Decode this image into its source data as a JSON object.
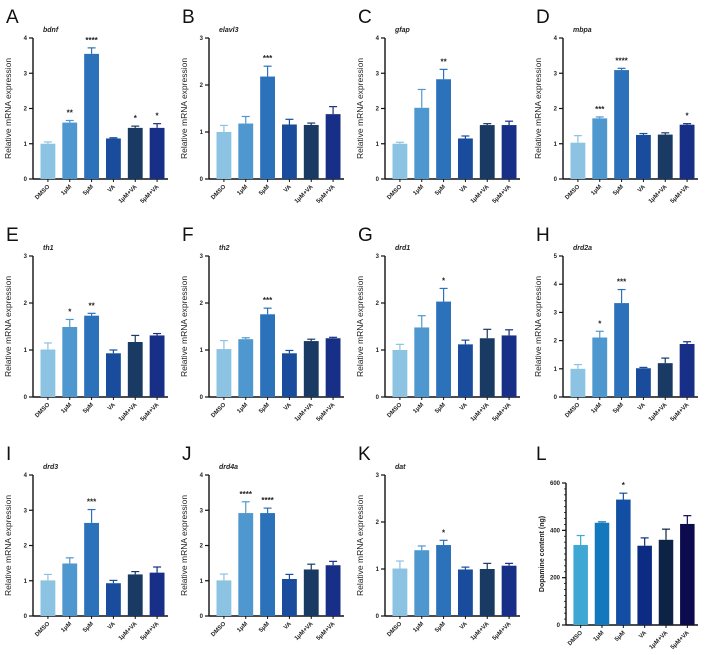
{
  "figure": {
    "categories": [
      "DMSO",
      "1μM",
      "5μM",
      "VA",
      "1μM+VA",
      "5μM+VA"
    ],
    "palette_rna": [
      "#8cc3e3",
      "#4f98cf",
      "#2c72bb",
      "#1a4c9e",
      "#183a63",
      "#172f87"
    ],
    "palette_dopamine": [
      "#3ea7d3",
      "#1478bd",
      "#124ea3",
      "#0c2c84",
      "#0c2346",
      "#0b0b4d"
    ]
  },
  "chart_data": [
    {
      "panel": "A",
      "type": "bar",
      "title": "bdnf",
      "ylabel": "Relative mRNA  expression",
      "ylim": [
        0,
        4
      ],
      "yticks": [
        0,
        1,
        2,
        3,
        4
      ],
      "categories": [
        "DMSO",
        "1μM",
        "5μM",
        "VA",
        "1μM+VA",
        "5μM+VA"
      ],
      "values": [
        1.0,
        1.6,
        3.55,
        1.15,
        1.45,
        1.45
      ],
      "errors": [
        0.05,
        0.06,
        0.17,
        0.02,
        0.05,
        0.12
      ],
      "significance": [
        "",
        "**",
        "****",
        "",
        "*",
        "*"
      ]
    },
    {
      "panel": "B",
      "type": "bar",
      "title": "elavl3",
      "ylabel": "Relative mRNA  expression",
      "ylim": [
        0,
        3
      ],
      "yticks": [
        0,
        1,
        2,
        3
      ],
      "categories": [
        "DMSO",
        "1μM",
        "5μM",
        "VA",
        "1μM+VA",
        "5μM+VA"
      ],
      "values": [
        1.0,
        1.18,
        2.18,
        1.16,
        1.15,
        1.38
      ],
      "errors": [
        0.14,
        0.15,
        0.22,
        0.11,
        0.04,
        0.16
      ],
      "significance": [
        "",
        "",
        "***",
        "",
        "",
        ""
      ]
    },
    {
      "panel": "C",
      "type": "bar",
      "title": "gfap",
      "ylabel": "Relative mRNA  expression",
      "ylim": [
        0,
        4
      ],
      "yticks": [
        0,
        1,
        2,
        3,
        4
      ],
      "categories": [
        "DMSO",
        "1μM",
        "5μM",
        "VA",
        "1μM+VA",
        "5μM+VA"
      ],
      "values": [
        1.0,
        2.02,
        2.83,
        1.15,
        1.53,
        1.53
      ],
      "errors": [
        0.04,
        0.52,
        0.28,
        0.07,
        0.04,
        0.11
      ],
      "significance": [
        "",
        "",
        "**",
        "",
        "",
        ""
      ]
    },
    {
      "panel": "D",
      "type": "bar",
      "title": "mbpa",
      "ylabel": "Relative mRNA  expression",
      "ylim": [
        0,
        4
      ],
      "yticks": [
        0,
        1,
        2,
        3,
        4
      ],
      "categories": [
        "DMSO",
        "1μM",
        "5μM",
        "VA",
        "1μM+VA",
        "5μM+VA"
      ],
      "values": [
        1.03,
        1.72,
        3.09,
        1.25,
        1.26,
        1.54
      ],
      "errors": [
        0.2,
        0.04,
        0.05,
        0.04,
        0.05,
        0.03
      ],
      "significance": [
        "",
        "***",
        "****",
        "",
        "",
        "*"
      ]
    },
    {
      "panel": "E",
      "type": "bar",
      "title": "th1",
      "ylabel": "Relative mRNA  expression",
      "ylim": [
        0,
        3
      ],
      "yticks": [
        0,
        1,
        2,
        3
      ],
      "categories": [
        "DMSO",
        "1μM",
        "5μM",
        "VA",
        "1μM+VA",
        "5μM+VA"
      ],
      "values": [
        1.01,
        1.49,
        1.73,
        0.93,
        1.17,
        1.31
      ],
      "errors": [
        0.14,
        0.16,
        0.05,
        0.07,
        0.14,
        0.04
      ],
      "significance": [
        "",
        "*",
        "**",
        "",
        "",
        ""
      ]
    },
    {
      "panel": "F",
      "type": "bar",
      "title": "th2",
      "ylabel": "Relative mRNA  expression",
      "ylim": [
        0,
        3
      ],
      "yticks": [
        0,
        1,
        2,
        3
      ],
      "categories": [
        "DMSO",
        "1μM",
        "5μM",
        "VA",
        "1μM+VA",
        "5μM+VA"
      ],
      "values": [
        1.02,
        1.23,
        1.76,
        0.93,
        1.19,
        1.25
      ],
      "errors": [
        0.18,
        0.03,
        0.13,
        0.06,
        0.04,
        0.02
      ],
      "significance": [
        "",
        "",
        "***",
        "",
        "",
        ""
      ]
    },
    {
      "panel": "G",
      "type": "bar",
      "title": "drd1",
      "ylabel": "Relative mRNA  expression",
      "ylim": [
        0,
        3
      ],
      "yticks": [
        0,
        1,
        2,
        3
      ],
      "categories": [
        "DMSO",
        "1μM",
        "5μM",
        "VA",
        "1μM+VA",
        "5μM+VA"
      ],
      "values": [
        1.0,
        1.48,
        2.03,
        1.12,
        1.25,
        1.31
      ],
      "errors": [
        0.12,
        0.25,
        0.28,
        0.09,
        0.19,
        0.12
      ],
      "significance": [
        "",
        "",
        "*",
        "",
        "",
        ""
      ]
    },
    {
      "panel": "H",
      "type": "bar",
      "title": "drd2a",
      "ylabel": "Relative mRNA  expression",
      "ylim": [
        0,
        5
      ],
      "yticks": [
        0,
        1,
        2,
        3,
        4,
        5
      ],
      "categories": [
        "DMSO",
        "1μM",
        "5μM",
        "VA",
        "1μM+VA",
        "5μM+VA"
      ],
      "values": [
        1.0,
        2.11,
        3.33,
        1.02,
        1.2,
        1.88
      ],
      "errors": [
        0.15,
        0.22,
        0.48,
        0.03,
        0.18,
        0.08
      ],
      "significance": [
        "",
        "*",
        "***",
        "",
        "",
        ""
      ]
    },
    {
      "panel": "I",
      "type": "bar",
      "title": "drd3",
      "ylabel": "Relative mRNA  expression",
      "ylim": [
        0,
        4
      ],
      "yticks": [
        0,
        1,
        2,
        3,
        4
      ],
      "categories": [
        "DMSO",
        "1μM",
        "5μM",
        "VA",
        "1μM+VA",
        "5μM+VA"
      ],
      "values": [
        1.01,
        1.49,
        2.64,
        0.93,
        1.18,
        1.23
      ],
      "errors": [
        0.17,
        0.16,
        0.38,
        0.08,
        0.08,
        0.16
      ],
      "significance": [
        "",
        "",
        "***",
        "",
        "",
        ""
      ]
    },
    {
      "panel": "J",
      "type": "bar",
      "title": "drd4a",
      "ylabel": "Relative mRNA  expression",
      "ylim": [
        0,
        4
      ],
      "yticks": [
        0,
        1,
        2,
        3,
        4
      ],
      "categories": [
        "DMSO",
        "1μM",
        "5μM",
        "VA",
        "1μM+VA",
        "5μM+VA"
      ],
      "values": [
        1.01,
        2.92,
        2.92,
        1.05,
        1.32,
        1.44
      ],
      "errors": [
        0.18,
        0.32,
        0.14,
        0.13,
        0.15,
        0.11
      ],
      "significance": [
        "",
        "****",
        "****",
        "",
        "",
        ""
      ]
    },
    {
      "panel": "K",
      "type": "bar",
      "title": "dat",
      "ylabel": "Relative mRNA  expression",
      "ylim": [
        0,
        3
      ],
      "yticks": [
        0,
        1,
        2,
        3
      ],
      "categories": [
        "DMSO",
        "1μM",
        "5μM",
        "VA",
        "1μM+VA",
        "5μM+VA"
      ],
      "values": [
        1.01,
        1.4,
        1.51,
        0.99,
        1.0,
        1.07
      ],
      "errors": [
        0.16,
        0.09,
        0.1,
        0.05,
        0.12,
        0.05
      ],
      "significance": [
        "",
        "",
        "*",
        "",
        "",
        ""
      ]
    },
    {
      "panel": "L",
      "type": "bar",
      "title": "",
      "ylabel": "Dopamine content  (ng)",
      "ylim": [
        0,
        600
      ],
      "yticks": [
        0,
        200,
        400,
        600
      ],
      "categories": [
        "DMSO",
        "1μM",
        "5μM",
        "VA",
        "1μM+VA",
        "5μM+VA"
      ],
      "values": [
        338,
        432,
        530,
        335,
        360,
        427
      ],
      "errors": [
        40,
        4,
        27,
        33,
        45,
        35
      ],
      "significance": [
        "",
        "",
        "*",
        "",
        "",
        ""
      ]
    }
  ]
}
